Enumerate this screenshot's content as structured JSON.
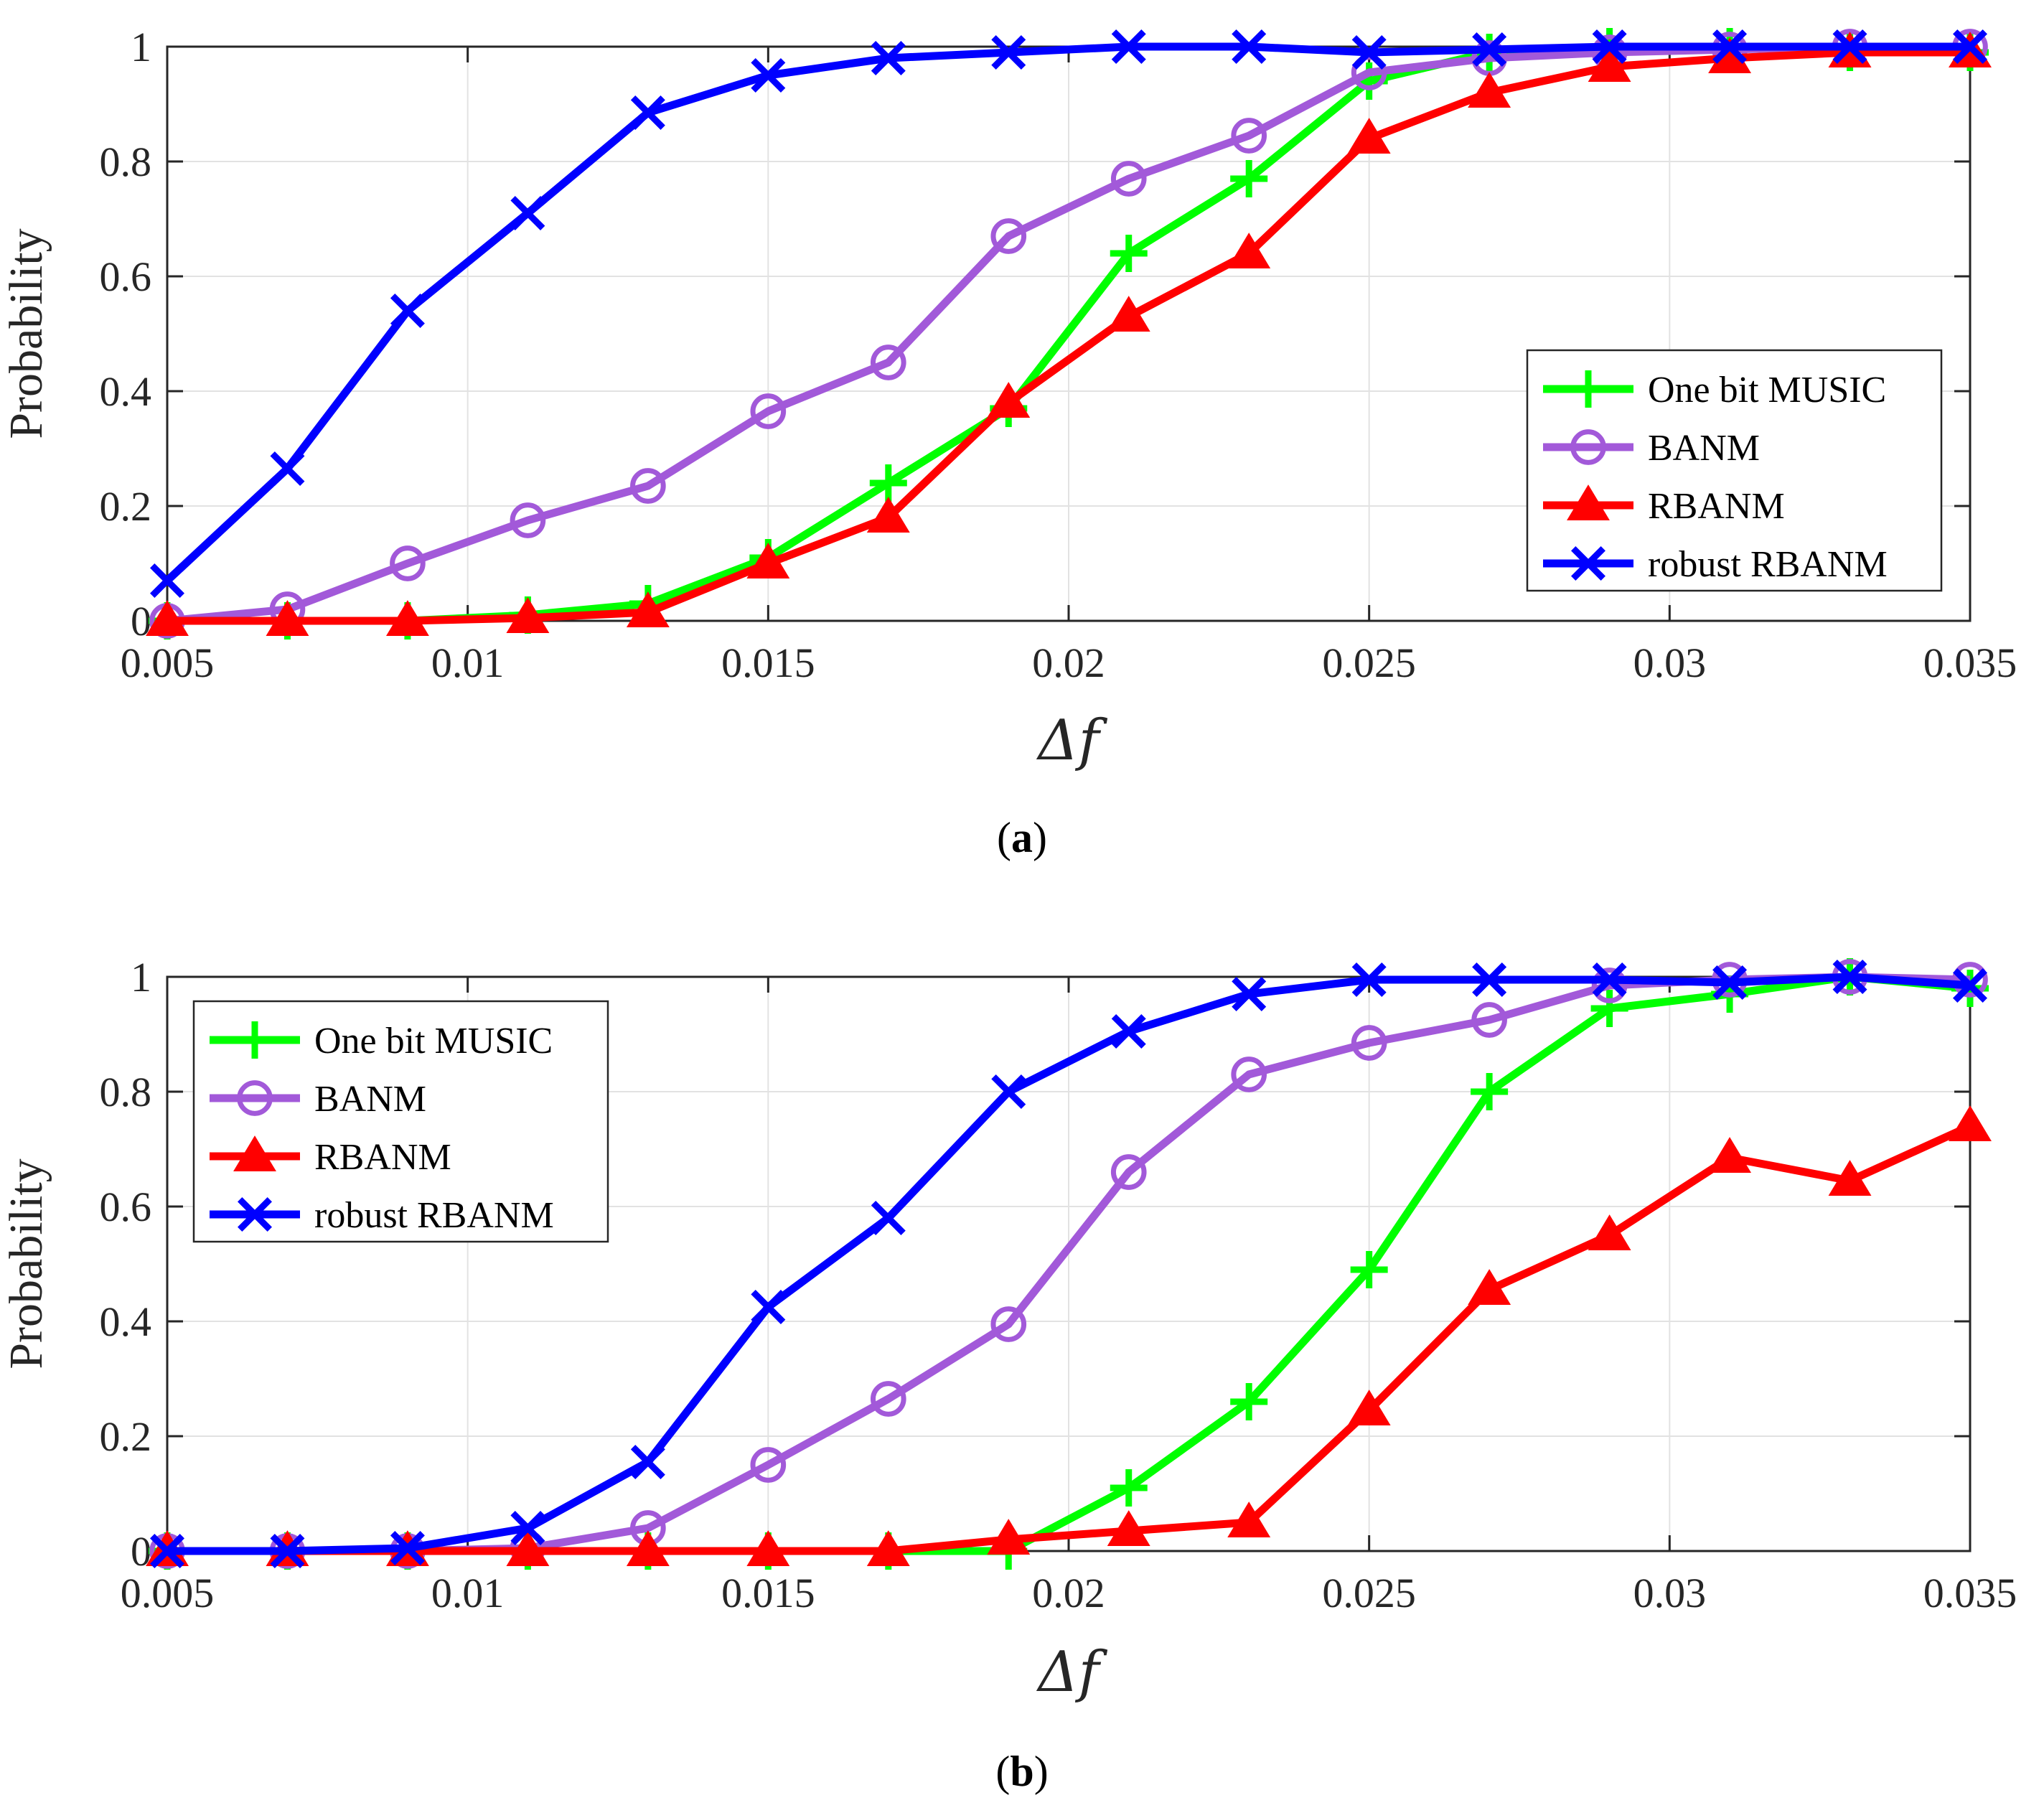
{
  "colors": {
    "one_bit_music": "#00ff00",
    "banm": "#a259d9",
    "rbanm": "#ff0000",
    "robust_rbanm": "#0000ff",
    "axis": "#262626",
    "grid": "#e2e2e2"
  },
  "chart_data": [
    {
      "type": "line",
      "caption_letter": "a",
      "caption_open": "(",
      "caption_close": ")",
      "xlabel": "Δf",
      "ylabel": "Probability",
      "xlim": [
        0.005,
        0.035
      ],
      "ylim": [
        0,
        1
      ],
      "x_ticks": [
        "0.005",
        "0.01",
        "0.015",
        "0.02",
        "0.025",
        "0.03",
        "0.035"
      ],
      "x_tick_values": [
        0.005,
        0.01,
        0.015,
        0.02,
        0.025,
        0.03,
        0.035
      ],
      "y_ticks": [
        "0",
        "0.2",
        "0.4",
        "0.6",
        "0.8",
        "1"
      ],
      "y_tick_values": [
        0,
        0.2,
        0.4,
        0.6,
        0.8,
        1
      ],
      "grid": true,
      "legend_position": "bottom-right",
      "x": [
        0.005,
        0.007,
        0.009,
        0.011,
        0.013,
        0.015,
        0.017,
        0.019,
        0.021,
        0.023,
        0.025,
        0.027,
        0.029,
        0.031,
        0.033,
        0.035
      ],
      "series": [
        {
          "name": "One bit MUSIC",
          "marker": "plus",
          "values": [
            0,
            0,
            0,
            0.01,
            0.03,
            0.11,
            0.24,
            0.37,
            0.64,
            0.77,
            0.94,
            0.99,
            1.0,
            1.0,
            0.99,
            0.99
          ]
        },
        {
          "name": "BANM",
          "marker": "circle",
          "values": [
            0,
            0.02,
            0.1,
            0.175,
            0.235,
            0.365,
            0.45,
            0.67,
            0.77,
            0.845,
            0.955,
            0.98,
            0.99,
            0.995,
            1.0,
            1.0
          ]
        },
        {
          "name": "RBANM",
          "marker": "triangle",
          "values": [
            0,
            0,
            0,
            0.005,
            0.015,
            0.1,
            0.18,
            0.38,
            0.53,
            0.64,
            0.84,
            0.92,
            0.965,
            0.98,
            0.99,
            0.99
          ]
        },
        {
          "name": "robust RBANM",
          "marker": "x",
          "values": [
            0.07,
            0.265,
            0.54,
            0.71,
            0.885,
            0.95,
            0.98,
            0.99,
            1.0,
            1.0,
            0.99,
            0.995,
            1.0,
            1.0,
            1.0,
            1.0
          ]
        }
      ]
    },
    {
      "type": "line",
      "caption_letter": "b",
      "caption_open": "(",
      "caption_close": ")",
      "xlabel": "Δf",
      "ylabel": "Probability",
      "xlim": [
        0.005,
        0.035
      ],
      "ylim": [
        0,
        1
      ],
      "x_ticks": [
        "0.005",
        "0.01",
        "0.015",
        "0.02",
        "0.025",
        "0.03",
        "0.035"
      ],
      "x_tick_values": [
        0.005,
        0.01,
        0.015,
        0.02,
        0.025,
        0.03,
        0.035
      ],
      "y_ticks": [
        "0",
        "0.2",
        "0.4",
        "0.6",
        "0.8",
        "1"
      ],
      "y_tick_values": [
        0,
        0.2,
        0.4,
        0.6,
        0.8,
        1
      ],
      "grid": true,
      "legend_position": "top-left",
      "x": [
        0.005,
        0.007,
        0.009,
        0.011,
        0.013,
        0.015,
        0.017,
        0.019,
        0.021,
        0.023,
        0.025,
        0.027,
        0.029,
        0.031,
        0.033,
        0.035
      ],
      "series": [
        {
          "name": "One bit MUSIC",
          "marker": "plus",
          "values": [
            0,
            0,
            0,
            0,
            0,
            0,
            0,
            0,
            0.11,
            0.26,
            0.49,
            0.8,
            0.945,
            0.97,
            1.0,
            0.98
          ]
        },
        {
          "name": "BANM",
          "marker": "circle",
          "values": [
            0,
            0,
            0,
            0.005,
            0.04,
            0.15,
            0.265,
            0.395,
            0.66,
            0.83,
            0.885,
            0.925,
            0.985,
            0.995,
            1.0,
            0.995
          ]
        },
        {
          "name": "RBANM",
          "marker": "triangle",
          "values": [
            0,
            0,
            0,
            0,
            0,
            0,
            0,
            0.02,
            0.035,
            0.05,
            0.245,
            0.455,
            0.55,
            0.685,
            0.645,
            0.74
          ]
        },
        {
          "name": "robust RBANM",
          "marker": "x",
          "values": [
            0,
            0,
            0.005,
            0.04,
            0.155,
            0.425,
            0.58,
            0.8,
            0.905,
            0.97,
            0.995,
            0.995,
            0.995,
            0.99,
            1.0,
            0.985
          ]
        }
      ]
    }
  ]
}
